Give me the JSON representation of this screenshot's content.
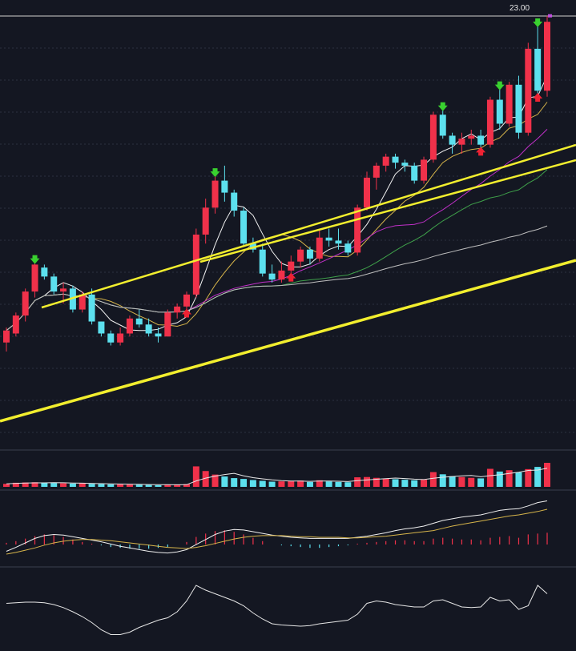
{
  "chart_data": {
    "type": "candlestick",
    "price_label": "23.00",
    "price_range": [
      9.6,
      23.6
    ],
    "colors": {
      "up": "#f0314a",
      "down": "#5ce0ee",
      "ma5": "#f2f2f2",
      "ma10": "#d6b44a",
      "ma20": "#c030c8",
      "ma30": "#3fa04a",
      "ma60": "#bfbfbf",
      "trendline": "#f2ee2e",
      "buy_arrow": "#39d12f",
      "sell_arrow": "#ee2233",
      "background": "#141722",
      "grid": "#2b3040"
    },
    "candles": [
      [
        12.6,
        13.1,
        12.3,
        13.0
      ],
      [
        12.9,
        13.6,
        12.8,
        13.5
      ],
      [
        13.5,
        14.4,
        13.3,
        14.3
      ],
      [
        14.3,
        15.3,
        14.1,
        15.2
      ],
      [
        15.1,
        15.2,
        14.7,
        14.8
      ],
      [
        14.8,
        14.9,
        14.2,
        14.3
      ],
      [
        14.3,
        14.6,
        13.9,
        14.4
      ],
      [
        14.4,
        14.5,
        13.6,
        13.7
      ],
      [
        13.7,
        14.3,
        13.6,
        14.2
      ],
      [
        14.2,
        14.4,
        13.2,
        13.3
      ],
      [
        13.3,
        13.3,
        12.8,
        12.9
      ],
      [
        12.9,
        13.0,
        12.5,
        12.6
      ],
      [
        12.6,
        13.1,
        12.5,
        12.9
      ],
      [
        12.9,
        13.5,
        12.8,
        13.4
      ],
      [
        13.4,
        13.7,
        13.1,
        13.2
      ],
      [
        13.2,
        13.4,
        12.8,
        12.9
      ],
      [
        12.9,
        13.1,
        12.6,
        12.8
      ],
      [
        12.8,
        13.7,
        12.8,
        13.6
      ],
      [
        13.6,
        13.9,
        13.4,
        13.8
      ],
      [
        13.8,
        14.3,
        13.7,
        14.2
      ],
      [
        14.2,
        16.4,
        14.1,
        16.2
      ],
      [
        16.2,
        17.4,
        15.9,
        17.1
      ],
      [
        17.1,
        18.2,
        16.9,
        18.0
      ],
      [
        18.0,
        18.5,
        17.3,
        17.6
      ],
      [
        17.6,
        17.7,
        16.8,
        17.0
      ],
      [
        17.0,
        17.1,
        15.8,
        15.9
      ],
      [
        15.9,
        16.1,
        15.6,
        15.7
      ],
      [
        15.7,
        15.9,
        14.8,
        14.9
      ],
      [
        14.9,
        15.2,
        14.6,
        14.7
      ],
      [
        14.7,
        15.3,
        14.6,
        15.0
      ],
      [
        15.0,
        15.5,
        14.9,
        15.3
      ],
      [
        15.3,
        15.8,
        15.1,
        15.7
      ],
      [
        15.7,
        15.8,
        15.2,
        15.4
      ],
      [
        15.4,
        16.4,
        15.3,
        16.1
      ],
      [
        16.1,
        16.4,
        15.8,
        16.0
      ],
      [
        16.0,
        16.4,
        15.7,
        15.9
      ],
      [
        15.9,
        16.0,
        15.5,
        15.6
      ],
      [
        15.6,
        17.2,
        15.5,
        17.1
      ],
      [
        17.1,
        18.3,
        17.0,
        18.1
      ],
      [
        18.1,
        18.6,
        17.7,
        18.5
      ],
      [
        18.5,
        18.9,
        18.3,
        18.8
      ],
      [
        18.8,
        18.9,
        18.4,
        18.6
      ],
      [
        18.6,
        18.7,
        18.3,
        18.5
      ],
      [
        18.5,
        18.6,
        17.9,
        18.0
      ],
      [
        18.0,
        18.8,
        17.9,
        18.7
      ],
      [
        18.7,
        20.3,
        18.6,
        20.2
      ],
      [
        20.2,
        20.4,
        19.4,
        19.5
      ],
      [
        19.5,
        19.6,
        18.9,
        19.2
      ],
      [
        19.2,
        19.6,
        18.9,
        19.4
      ],
      [
        19.4,
        19.7,
        19.2,
        19.5
      ],
      [
        19.5,
        19.7,
        19.1,
        19.2
      ],
      [
        19.2,
        20.8,
        19.1,
        20.7
      ],
      [
        20.7,
        21.1,
        19.7,
        19.9
      ],
      [
        19.9,
        21.3,
        19.8,
        21.2
      ],
      [
        21.2,
        21.5,
        19.4,
        19.6
      ],
      [
        19.6,
        22.6,
        19.5,
        22.4
      ],
      [
        22.4,
        23.2,
        20.9,
        21.0
      ],
      [
        21.0,
        23.5,
        20.8,
        23.3
      ]
    ],
    "volume": [
      1.1,
      1.5,
      1.6,
      1.7,
      1.5,
      1.4,
      1.3,
      1.2,
      1.3,
      1.1,
      1.0,
      0.9,
      0.9,
      1.0,
      0.8,
      0.7,
      0.6,
      0.8,
      0.9,
      1.0,
      7.5,
      5.8,
      4.5,
      3.8,
      3.2,
      2.9,
      2.5,
      2.2,
      1.9,
      2.0,
      2.1,
      2.3,
      1.8,
      2.4,
      2.0,
      1.8,
      1.7,
      3.5,
      3.6,
      3.3,
      3.0,
      2.8,
      2.6,
      2.4,
      2.6,
      5.4,
      4.6,
      3.9,
      3.6,
      3.3,
      3.1,
      6.6,
      5.6,
      6.1,
      5.3,
      6.5,
      7.3,
      8.8
    ],
    "macd_hist": [
      0.02,
      0.04,
      0.07,
      0.1,
      0.12,
      0.11,
      0.09,
      0.06,
      0.03,
      0.01,
      -0.01,
      -0.03,
      -0.04,
      -0.05,
      -0.05,
      -0.05,
      -0.04,
      -0.03,
      0.0,
      0.03,
      0.09,
      0.13,
      0.16,
      0.17,
      0.15,
      0.12,
      0.08,
      0.04,
      0.0,
      -0.01,
      -0.02,
      -0.03,
      -0.04,
      -0.04,
      -0.03,
      -0.02,
      -0.01,
      0.01,
      0.02,
      0.03,
      0.04,
      0.05,
      0.05,
      0.04,
      0.04,
      0.07,
      0.08,
      0.07,
      0.06,
      0.06,
      0.05,
      0.08,
      0.09,
      0.1,
      0.08,
      0.12,
      0.13,
      0.14
    ],
    "macd_dif": [
      0.05,
      0.12,
      0.2,
      0.28,
      0.33,
      0.35,
      0.34,
      0.31,
      0.28,
      0.25,
      0.22,
      0.18,
      0.14,
      0.11,
      0.08,
      0.05,
      0.03,
      0.02,
      0.04,
      0.08,
      0.17,
      0.26,
      0.35,
      0.41,
      0.44,
      0.43,
      0.4,
      0.37,
      0.34,
      0.32,
      0.3,
      0.29,
      0.28,
      0.28,
      0.28,
      0.28,
      0.28,
      0.3,
      0.32,
      0.35,
      0.38,
      0.42,
      0.45,
      0.47,
      0.5,
      0.55,
      0.6,
      0.63,
      0.66,
      0.68,
      0.7,
      0.74,
      0.78,
      0.8,
      0.81,
      0.86,
      0.92,
      0.95
    ],
    "macd_dea": [
      0.0,
      0.03,
      0.07,
      0.11,
      0.16,
      0.2,
      0.23,
      0.25,
      0.26,
      0.26,
      0.25,
      0.24,
      0.22,
      0.2,
      0.18,
      0.16,
      0.14,
      0.12,
      0.11,
      0.1,
      0.12,
      0.15,
      0.19,
      0.23,
      0.27,
      0.3,
      0.32,
      0.33,
      0.33,
      0.33,
      0.32,
      0.31,
      0.31,
      0.3,
      0.3,
      0.3,
      0.29,
      0.29,
      0.3,
      0.31,
      0.32,
      0.34,
      0.36,
      0.38,
      0.4,
      0.42,
      0.46,
      0.5,
      0.53,
      0.56,
      0.59,
      0.62,
      0.65,
      0.68,
      0.7,
      0.73,
      0.76,
      0.8
    ],
    "indicator3": [
      62,
      63,
      64,
      64,
      63,
      60,
      55,
      48,
      40,
      30,
      18,
      10,
      10,
      14,
      22,
      28,
      34,
      38,
      48,
      66,
      92,
      84,
      78,
      72,
      66,
      58,
      46,
      36,
      28,
      26,
      25,
      24,
      25,
      28,
      30,
      32,
      34,
      44,
      62,
      66,
      64,
      60,
      58,
      56,
      56,
      66,
      68,
      62,
      56,
      55,
      56,
      72,
      66,
      68,
      52,
      58,
      92,
      78
    ],
    "buy_markers": [
      3,
      22,
      46,
      52,
      56
    ],
    "sell_markers": [
      19,
      30,
      50,
      56
    ]
  }
}
